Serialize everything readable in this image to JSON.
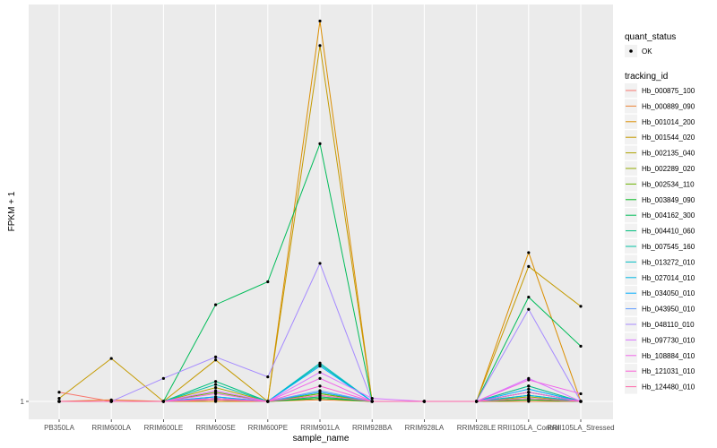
{
  "chart_data": {
    "type": "line",
    "xlabel": "sample_name",
    "ylabel": "FPKM + 1",
    "categories": [
      "PB350LA",
      "RRIM600LA",
      "RRIM600LE",
      "RRIM600SE",
      "RRIM600PE",
      "RRIM901LA",
      "RRIM928BA",
      "RRIM928LA",
      "RRIM928LE",
      "RRII105LA_Control",
      "RRII105LA_Stressed"
    ],
    "y_ticks": [
      {
        "value": 1,
        "label": "1"
      }
    ],
    "ylim": [
      1,
      26
    ],
    "legend_quant": {
      "title": "quant_status",
      "items": [
        "OK"
      ]
    },
    "legend_title": "tracking_id",
    "series": [
      {
        "name": "Hb_000875_100",
        "color": "#F8766D",
        "values": [
          1.6,
          1.0,
          1.0,
          1.1,
          1.0,
          1.3,
          1.0,
          1.0,
          1.0,
          1.1,
          1.0
        ]
      },
      {
        "name": "Hb_000889_090",
        "color": "#EB8335",
        "values": [
          1.0,
          1.1,
          1.0,
          1.0,
          1.0,
          1.1,
          1.0,
          1.0,
          1.0,
          1.0,
          1.0
        ]
      },
      {
        "name": "Hb_001014_200",
        "color": "#DB8E00",
        "values": [
          1.0,
          1.0,
          1.0,
          1.0,
          1.0,
          25.8,
          1.0,
          1.0,
          1.0,
          10.7,
          1.0
        ]
      },
      {
        "name": "Hb_001544_020",
        "color": "#C49A00",
        "values": [
          1.2,
          3.8,
          1.0,
          3.7,
          1.0,
          24.2,
          1.0,
          1.0,
          1.0,
          9.8,
          7.2
        ]
      },
      {
        "name": "Hb_002135_040",
        "color": "#AEA200",
        "values": [
          1.0,
          1.0,
          1.0,
          1.9,
          1.0,
          1.5,
          1.0,
          1.0,
          1.0,
          2.0,
          1.0
        ]
      },
      {
        "name": "Hb_002289_020",
        "color": "#93AA00",
        "values": [
          1.0,
          1.0,
          1.0,
          1.2,
          1.0,
          1.2,
          1.0,
          1.0,
          1.0,
          1.3,
          1.0
        ]
      },
      {
        "name": "Hb_002534_110",
        "color": "#6BB100",
        "values": [
          1.0,
          1.0,
          1.0,
          1.6,
          1.0,
          1.5,
          1.0,
          1.0,
          1.0,
          1.6,
          1.0
        ]
      },
      {
        "name": "Hb_003849_090",
        "color": "#00B81F",
        "values": [
          1.0,
          1.0,
          1.0,
          1.1,
          1.0,
          1.2,
          1.0,
          1.0,
          1.0,
          1.1,
          1.0
        ]
      },
      {
        "name": "Hb_004162_300",
        "color": "#00BC59",
        "values": [
          1.0,
          1.0,
          1.0,
          7.3,
          8.8,
          17.8,
          1.0,
          1.0,
          1.0,
          7.8,
          4.6
        ]
      },
      {
        "name": "Hb_004410_060",
        "color": "#00BF7D",
        "values": [
          1.0,
          1.0,
          1.0,
          2.3,
          1.0,
          1.3,
          1.0,
          1.0,
          1.0,
          1.4,
          1.0
        ]
      },
      {
        "name": "Hb_007545_160",
        "color": "#00C0A3",
        "values": [
          1.0,
          1.0,
          1.0,
          2.1,
          1.0,
          3.4,
          1.0,
          1.0,
          1.0,
          2.0,
          1.0
        ]
      },
      {
        "name": "Hb_013272_010",
        "color": "#00BCC4",
        "values": [
          1.0,
          1.0,
          1.0,
          1.3,
          1.0,
          3.5,
          1.0,
          1.0,
          1.0,
          1.6,
          1.0
        ]
      },
      {
        "name": "Hb_027014_010",
        "color": "#00B6E2",
        "values": [
          1.0,
          1.0,
          1.0,
          1.2,
          1.0,
          1.6,
          1.0,
          1.0,
          1.0,
          1.4,
          1.0
        ]
      },
      {
        "name": "Hb_034050_010",
        "color": "#00ACFC",
        "values": [
          1.0,
          1.0,
          1.0,
          1.3,
          1.0,
          3.3,
          1.0,
          1.0,
          1.0,
          1.8,
          1.0
        ]
      },
      {
        "name": "Hb_043950_010",
        "color": "#619CFF",
        "values": [
          1.0,
          1.0,
          1.0,
          1.1,
          1.0,
          1.7,
          1.0,
          1.0,
          1.0,
          1.2,
          1.0
        ]
      },
      {
        "name": "Hb_048110_010",
        "color": "#A58AFF",
        "values": [
          1.0,
          1.0,
          2.5,
          3.9,
          2.6,
          10.0,
          1.0,
          1.0,
          1.0,
          7.0,
          1.0
        ]
      },
      {
        "name": "Hb_097730_010",
        "color": "#D974FF",
        "values": [
          1.0,
          1.0,
          1.0,
          1.7,
          1.0,
          2.9,
          1.2,
          1.0,
          1.0,
          2.5,
          1.0
        ]
      },
      {
        "name": "Hb_108884_010",
        "color": "#F066EA",
        "values": [
          1.0,
          1.0,
          1.0,
          1.5,
          1.0,
          2.5,
          1.0,
          1.0,
          1.0,
          2.4,
          1.5
        ]
      },
      {
        "name": "Hb_121031_010",
        "color": "#FB61D7",
        "values": [
          1.0,
          1.0,
          1.0,
          1.2,
          1.0,
          2.0,
          1.0,
          1.0,
          1.0,
          1.6,
          1.0
        ]
      },
      {
        "name": "Hb_124480_010",
        "color": "#FF66A8",
        "values": [
          1.0,
          1.0,
          1.0,
          1.1,
          1.0,
          1.4,
          1.0,
          1.0,
          1.0,
          1.2,
          1.0
        ]
      }
    ]
  }
}
